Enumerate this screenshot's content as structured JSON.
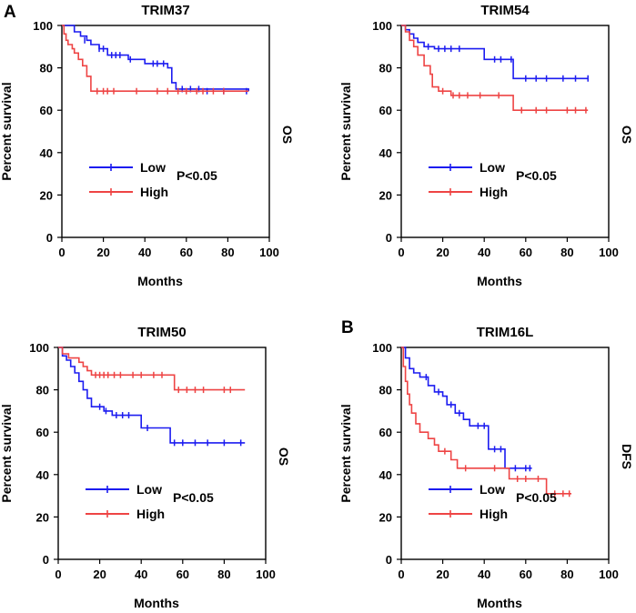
{
  "panel_letters": [
    "A",
    "B"
  ],
  "chart_data": [
    {
      "type": "line",
      "subtype": "kaplan-meier",
      "title": "TRIM37",
      "side_label": "OS",
      "xlabel": "Months",
      "ylabel": "Percent survival",
      "xlim": [
        0,
        100
      ],
      "ylim": [
        0,
        100
      ],
      "xticks": [
        0,
        20,
        40,
        60,
        80,
        100
      ],
      "yticks": [
        0,
        20,
        40,
        60,
        80,
        100
      ],
      "annotation": "P<0.05",
      "legend_position": "lower-left",
      "series": [
        {
          "name": "Low",
          "color": "#1c1cf0",
          "steps": [
            [
              0,
              100
            ],
            [
              6,
              97
            ],
            [
              9,
              95
            ],
            [
              12,
              93
            ],
            [
              14,
              91
            ],
            [
              18,
              89
            ],
            [
              22,
              86
            ],
            [
              32,
              84
            ],
            [
              36,
              84
            ],
            [
              40,
              82
            ],
            [
              48,
              82
            ],
            [
              51,
              80
            ],
            [
              53,
              73
            ],
            [
              55,
              70
            ],
            [
              60,
              70
            ],
            [
              90,
              69
            ]
          ],
          "censors": [
            [
              11,
              93
            ],
            [
              18,
              89
            ],
            [
              20,
              89
            ],
            [
              24,
              86
            ],
            [
              26,
              86
            ],
            [
              28,
              86
            ],
            [
              33,
              84
            ],
            [
              44,
              82
            ],
            [
              46,
              82
            ],
            [
              49,
              82
            ],
            [
              58,
              70
            ],
            [
              62,
              70
            ],
            [
              66,
              70
            ],
            [
              70,
              69
            ],
            [
              78,
              69
            ],
            [
              89,
              69
            ]
          ]
        },
        {
          "name": "High",
          "color": "#ee4444",
          "steps": [
            [
              0,
              100
            ],
            [
              1,
              96
            ],
            [
              2,
              93
            ],
            [
              3,
              91
            ],
            [
              5,
              89
            ],
            [
              6,
              87
            ],
            [
              8,
              84
            ],
            [
              10,
              81
            ],
            [
              12,
              76
            ],
            [
              14,
              69
            ],
            [
              90,
              69
            ]
          ],
          "censors": [
            [
              17,
              69
            ],
            [
              20,
              69
            ],
            [
              22,
              69
            ],
            [
              25,
              69
            ],
            [
              36,
              69
            ],
            [
              46,
              69
            ],
            [
              51,
              69
            ],
            [
              56,
              69
            ],
            [
              60,
              69
            ],
            [
              65,
              69
            ],
            [
              68,
              69
            ],
            [
              73,
              69
            ],
            [
              78,
              69
            ]
          ]
        }
      ]
    },
    {
      "type": "line",
      "subtype": "kaplan-meier",
      "title": "TRIM54",
      "side_label": "OS",
      "xlabel": "Months",
      "ylabel": "Percent survival",
      "xlim": [
        0,
        100
      ],
      "ylim": [
        0,
        100
      ],
      "xticks": [
        0,
        20,
        40,
        60,
        80,
        100
      ],
      "yticks": [
        0,
        20,
        40,
        60,
        80,
        100
      ],
      "annotation": "P<0.05",
      "legend_position": "lower-left",
      "series": [
        {
          "name": "Low",
          "color": "#1c1cf0",
          "steps": [
            [
              0,
              100
            ],
            [
              2,
              98
            ],
            [
              4,
              96
            ],
            [
              6,
              94
            ],
            [
              8,
              92
            ],
            [
              11,
              90
            ],
            [
              16,
              89
            ],
            [
              40,
              84
            ],
            [
              54,
              75
            ],
            [
              90,
              75
            ]
          ],
          "censors": [
            [
              13,
              90
            ],
            [
              18,
              89
            ],
            [
              21,
              89
            ],
            [
              24,
              89
            ],
            [
              28,
              89
            ],
            [
              45,
              84
            ],
            [
              48,
              84
            ],
            [
              53,
              84
            ],
            [
              60,
              75
            ],
            [
              65,
              75
            ],
            [
              70,
              75
            ],
            [
              78,
              75
            ],
            [
              84,
              75
            ],
            [
              90,
              75
            ]
          ]
        },
        {
          "name": "High",
          "color": "#ee4444",
          "steps": [
            [
              0,
              100
            ],
            [
              2,
              97
            ],
            [
              4,
              93
            ],
            [
              6,
              90
            ],
            [
              8,
              86
            ],
            [
              11,
              81
            ],
            [
              14,
              77
            ],
            [
              15,
              71
            ],
            [
              18,
              69
            ],
            [
              24,
              67
            ],
            [
              54,
              60
            ],
            [
              90,
              60
            ]
          ],
          "censors": [
            [
              20,
              69
            ],
            [
              25,
              67
            ],
            [
              28,
              67
            ],
            [
              32,
              67
            ],
            [
              38,
              67
            ],
            [
              47,
              67
            ],
            [
              58,
              60
            ],
            [
              65,
              60
            ],
            [
              70,
              60
            ],
            [
              80,
              60
            ],
            [
              84,
              60
            ],
            [
              89,
              60
            ]
          ]
        }
      ]
    },
    {
      "type": "line",
      "subtype": "kaplan-meier",
      "title": "TRIM50",
      "side_label": "OS",
      "xlabel": "Months",
      "ylabel": "Percent survival",
      "xlim": [
        0,
        100
      ],
      "ylim": [
        0,
        100
      ],
      "xticks": [
        0,
        20,
        40,
        60,
        80,
        100
      ],
      "yticks": [
        0,
        20,
        40,
        60,
        80,
        100
      ],
      "annotation": "P<0.05",
      "legend_position": "lower-left",
      "series": [
        {
          "name": "Low",
          "color": "#1c1cf0",
          "steps": [
            [
              0,
              100
            ],
            [
              2,
              96
            ],
            [
              4,
              94
            ],
            [
              6,
              91
            ],
            [
              8,
              88
            ],
            [
              10,
              84
            ],
            [
              12,
              80
            ],
            [
              14,
              76
            ],
            [
              16,
              72
            ],
            [
              22,
              70
            ],
            [
              26,
              68
            ],
            [
              40,
              62
            ],
            [
              54,
              55
            ],
            [
              90,
              55
            ]
          ],
          "censors": [
            [
              20,
              72
            ],
            [
              23,
              70
            ],
            [
              28,
              68
            ],
            [
              31,
              68
            ],
            [
              34,
              68
            ],
            [
              43,
              62
            ],
            [
              56,
              55
            ],
            [
              60,
              55
            ],
            [
              66,
              55
            ],
            [
              72,
              55
            ],
            [
              80,
              55
            ],
            [
              88,
              55
            ]
          ]
        },
        {
          "name": "High",
          "color": "#ee4444",
          "steps": [
            [
              0,
              100
            ],
            [
              2,
              97
            ],
            [
              5,
              95
            ],
            [
              10,
              93
            ],
            [
              12,
              91
            ],
            [
              14,
              89
            ],
            [
              16,
              87
            ],
            [
              56,
              80
            ],
            [
              90,
              80
            ]
          ],
          "censors": [
            [
              18,
              87
            ],
            [
              20,
              87
            ],
            [
              22,
              87
            ],
            [
              24,
              87
            ],
            [
              27,
              87
            ],
            [
              30,
              87
            ],
            [
              36,
              87
            ],
            [
              40,
              87
            ],
            [
              46,
              87
            ],
            [
              50,
              87
            ],
            [
              58,
              80
            ],
            [
              62,
              80
            ],
            [
              66,
              80
            ],
            [
              70,
              80
            ],
            [
              80,
              80
            ],
            [
              83,
              80
            ]
          ]
        }
      ]
    },
    {
      "type": "line",
      "subtype": "kaplan-meier",
      "title": "TRIM16L",
      "side_label": "DFS",
      "xlabel": "Months",
      "ylabel": "Percent survival",
      "xlim": [
        0,
        100
      ],
      "ylim": [
        0,
        100
      ],
      "xticks": [
        0,
        20,
        40,
        60,
        80,
        100
      ],
      "yticks": [
        0,
        20,
        40,
        60,
        80,
        100
      ],
      "annotation": "P<0.05",
      "legend_position": "lower-left",
      "series": [
        {
          "name": "Low",
          "color": "#1c1cf0",
          "steps": [
            [
              0,
              100
            ],
            [
              2,
              95
            ],
            [
              4,
              90
            ],
            [
              6,
              88
            ],
            [
              9,
              86
            ],
            [
              13,
              82
            ],
            [
              16,
              79
            ],
            [
              20,
              77
            ],
            [
              22,
              73
            ],
            [
              26,
              69
            ],
            [
              30,
              66
            ],
            [
              33,
              63
            ],
            [
              42,
              52
            ],
            [
              50,
              43
            ],
            [
              63,
              43
            ]
          ],
          "censors": [
            [
              12,
              86
            ],
            [
              18,
              79
            ],
            [
              24,
              73
            ],
            [
              28,
              69
            ],
            [
              37,
              63
            ],
            [
              40,
              63
            ],
            [
              45,
              52
            ],
            [
              48,
              52
            ],
            [
              55,
              43
            ],
            [
              60,
              43
            ],
            [
              62,
              43
            ]
          ]
        },
        {
          "name": "High",
          "color": "#ee4444",
          "steps": [
            [
              0,
              100
            ],
            [
              1,
              91
            ],
            [
              2,
              84
            ],
            [
              3,
              78
            ],
            [
              4,
              73
            ],
            [
              5,
              69
            ],
            [
              7,
              64
            ],
            [
              9,
              60
            ],
            [
              13,
              57
            ],
            [
              16,
              54
            ],
            [
              18,
              51
            ],
            [
              24,
              47
            ],
            [
              27,
              43
            ],
            [
              52,
              38
            ],
            [
              70,
              31
            ],
            [
              82,
              31
            ]
          ],
          "censors": [
            [
              21,
              51
            ],
            [
              31,
              43
            ],
            [
              45,
              43
            ],
            [
              56,
              38
            ],
            [
              60,
              38
            ],
            [
              66,
              38
            ],
            [
              74,
              31
            ],
            [
              78,
              31
            ],
            [
              81,
              31
            ]
          ]
        }
      ]
    }
  ]
}
